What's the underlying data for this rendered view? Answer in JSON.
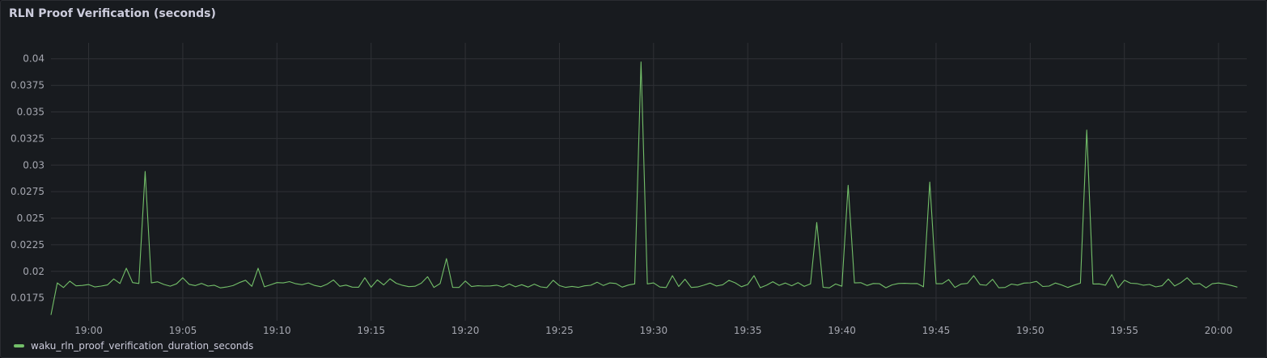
{
  "panel": {
    "title": "RLN Proof Verification (seconds)"
  },
  "colors": {
    "background": "#181b1f",
    "grid": "#2f3136",
    "series": "#73bf69",
    "text": "#ccccdc",
    "tick_text": "#a5a7b0"
  },
  "chart_data": {
    "type": "line",
    "title": "RLN Proof Verification (seconds)",
    "xlabel": "",
    "ylabel": "",
    "ylim": [
      0.0155,
      0.0415
    ],
    "xlim": [
      "18:58:00",
      "20:01:30"
    ],
    "grid": true,
    "legend_position": "bottom-left",
    "y_ticks": [
      "0.0175",
      "0.02",
      "0.0225",
      "0.025",
      "0.0275",
      "0.03",
      "0.0325",
      "0.035",
      "0.0375",
      "0.04"
    ],
    "x_ticks": [
      "19:00",
      "19:05",
      "19:10",
      "19:15",
      "19:20",
      "19:25",
      "19:30",
      "19:35",
      "19:40",
      "19:45",
      "19:50",
      "19:55",
      "20:00"
    ],
    "series": [
      {
        "name": "waku_rln_proof_verification_duration_seconds",
        "color": "#73bf69",
        "baseline": 0.0187,
        "spikes": [
          {
            "time": "19:01:50",
            "value": 0.0203
          },
          {
            "time": "19:02:50",
            "value": 0.0294
          },
          {
            "time": "19:05:00",
            "value": 0.0194
          },
          {
            "time": "19:09:00",
            "value": 0.0203
          },
          {
            "time": "19:14:30",
            "value": 0.0194
          },
          {
            "time": "19:16:00",
            "value": 0.0193
          },
          {
            "time": "19:17:50",
            "value": 0.0195
          },
          {
            "time": "19:18:50",
            "value": 0.0212
          },
          {
            "time": "19:29:20",
            "value": 0.0397
          },
          {
            "time": "19:31:00",
            "value": 0.0196
          },
          {
            "time": "19:35:10",
            "value": 0.0196
          },
          {
            "time": "19:38:40",
            "value": 0.0246
          },
          {
            "time": "19:40:10",
            "value": 0.0281
          },
          {
            "time": "19:44:30",
            "value": 0.0284
          },
          {
            "time": "19:46:50",
            "value": 0.0196
          },
          {
            "time": "19:53:00",
            "value": 0.0333
          },
          {
            "time": "19:54:20",
            "value": 0.0197
          },
          {
            "time": "19:58:10",
            "value": 0.0194
          }
        ]
      }
    ]
  }
}
